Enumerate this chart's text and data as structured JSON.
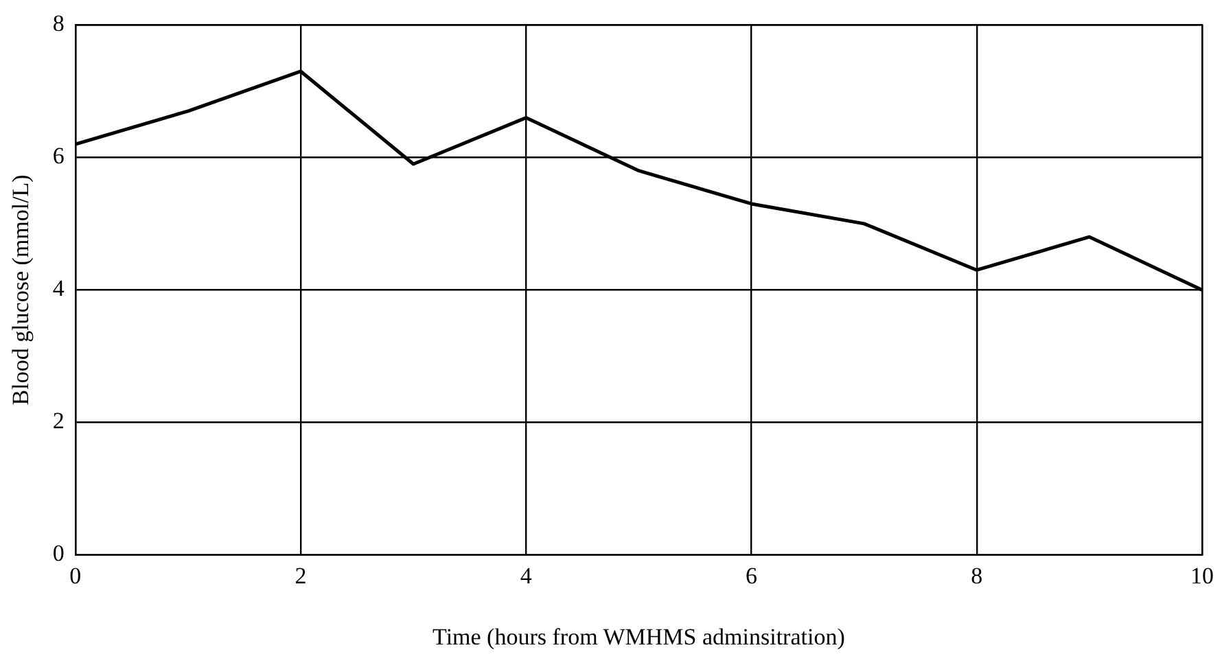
{
  "chart_data": {
    "type": "line",
    "xlabel": "Time (hours from WMHMS adminsitration)",
    "ylabel": "Blood glucose (mmol/L)",
    "x": [
      0,
      1,
      2,
      3,
      4,
      5,
      6,
      7,
      8,
      9,
      10
    ],
    "series": [
      {
        "color": "#000000",
        "values": [
          6.2,
          6.7,
          7.3,
          5.9,
          6.6,
          5.8,
          5.3,
          5.0,
          4.3,
          4.8,
          4.0
        ]
      }
    ],
    "xlim": [
      0,
      10
    ],
    "xticks": [
      0,
      2,
      4,
      6,
      8,
      10
    ],
    "ylim": [
      0,
      8
    ],
    "yticks": [
      0,
      2,
      4,
      6,
      8
    ],
    "grid": true,
    "legend": false,
    "marker": "none",
    "line_style": "solid"
  }
}
